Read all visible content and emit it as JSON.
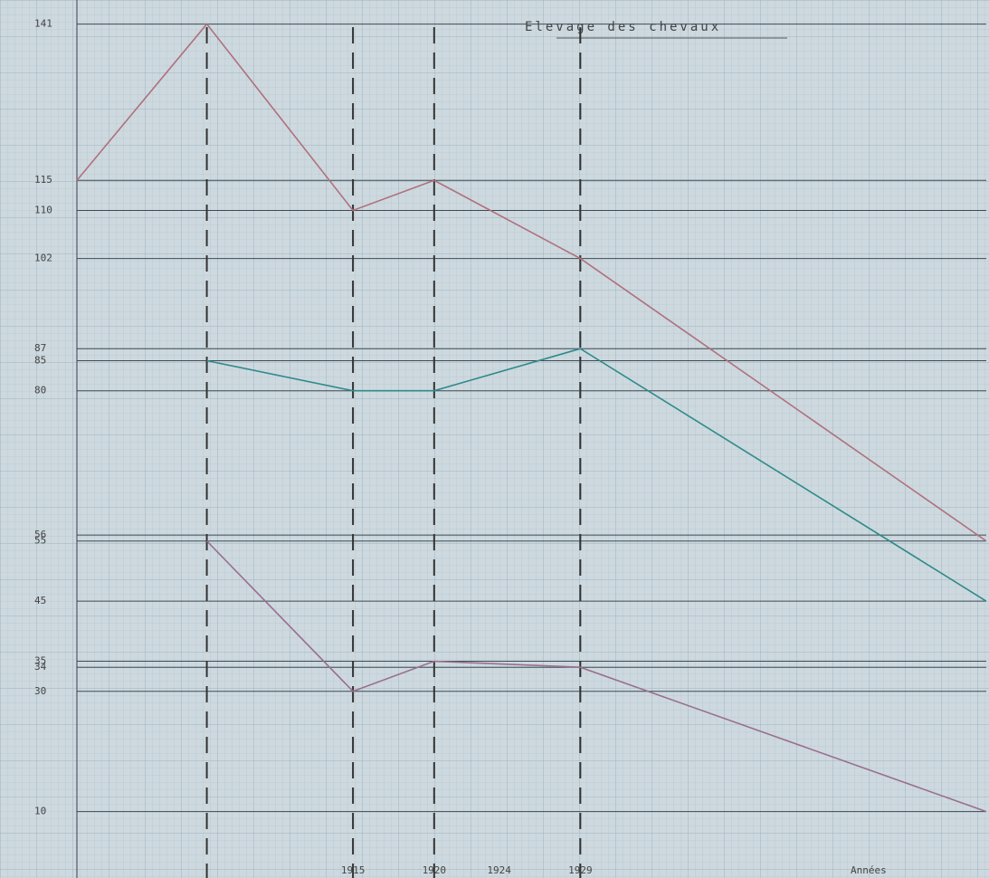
{
  "chart_data": {
    "type": "line",
    "title": "Elevage des chevaux",
    "x_label": "Années",
    "x": [
      1898,
      1906,
      1915,
      1920,
      1929,
      1954
    ],
    "series": [
      {
        "color": "#b0707e",
        "values": [
          115,
          141,
          110,
          115,
          102,
          55
        ]
      },
      {
        "color": "#2f8a8c",
        "values": [
          null,
          85,
          80,
          80,
          87,
          45
        ]
      },
      {
        "color": "#9a6f8e",
        "values": [
          null,
          55,
          30,
          35,
          34,
          10
        ]
      }
    ],
    "xlim": [
      1898,
      1954
    ],
    "xticks": [
      1915,
      1920,
      1924,
      1929
    ],
    "ylim": [
      0,
      145
    ],
    "yticks": [
      141,
      115,
      110,
      102,
      87,
      85,
      80,
      56,
      55,
      45,
      35,
      34,
      30,
      10
    ],
    "grid": true
  }
}
